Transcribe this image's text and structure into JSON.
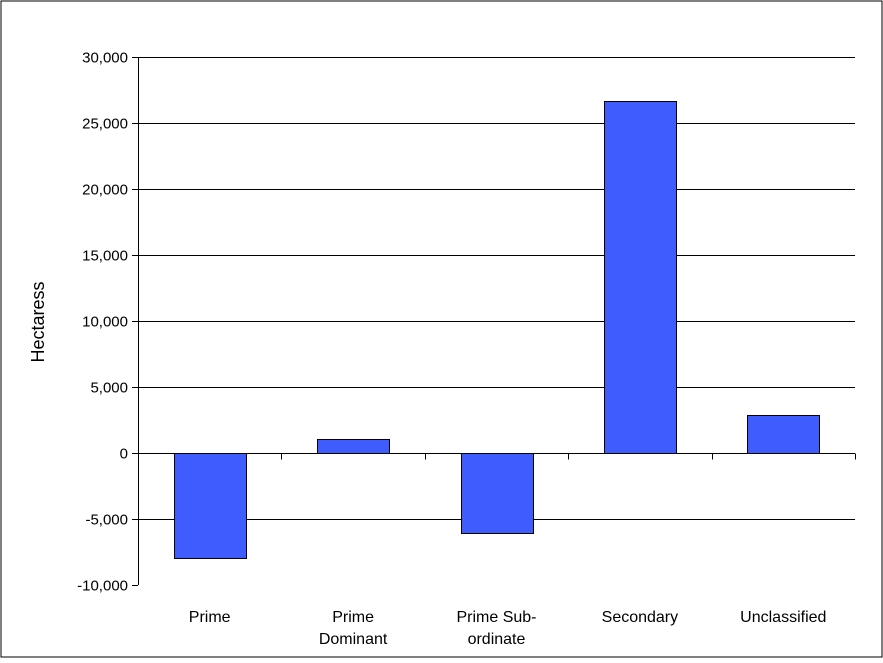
{
  "chart_data": {
    "type": "bar",
    "title": "",
    "xlabel": "",
    "ylabel": "Hectaress",
    "categories": [
      [
        "Prime"
      ],
      [
        "Prime",
        "Dominant"
      ],
      [
        "Prime Sub-",
        "ordinate"
      ],
      [
        "Secondary"
      ],
      [
        "Unclassified"
      ]
    ],
    "values": [
      -7950,
      1050,
      -6050,
      26700,
      2850
    ],
    "ylim": [
      -10000,
      30000
    ],
    "yticks": [
      30000,
      25000,
      20000,
      15000,
      10000,
      5000,
      0,
      -5000,
      -10000
    ],
    "ytick_labels": [
      "30,000",
      "25,000",
      "20,000",
      "15,000",
      "10,000",
      "5,000",
      "0",
      "-5,000",
      "-10,000"
    ],
    "grid": true,
    "legend": "none",
    "colors": {
      "bar_fill": "#3f5cff",
      "bar_stroke": "#000000",
      "gridline": "#000000",
      "axis": "#000000",
      "frame": "#000000"
    }
  }
}
